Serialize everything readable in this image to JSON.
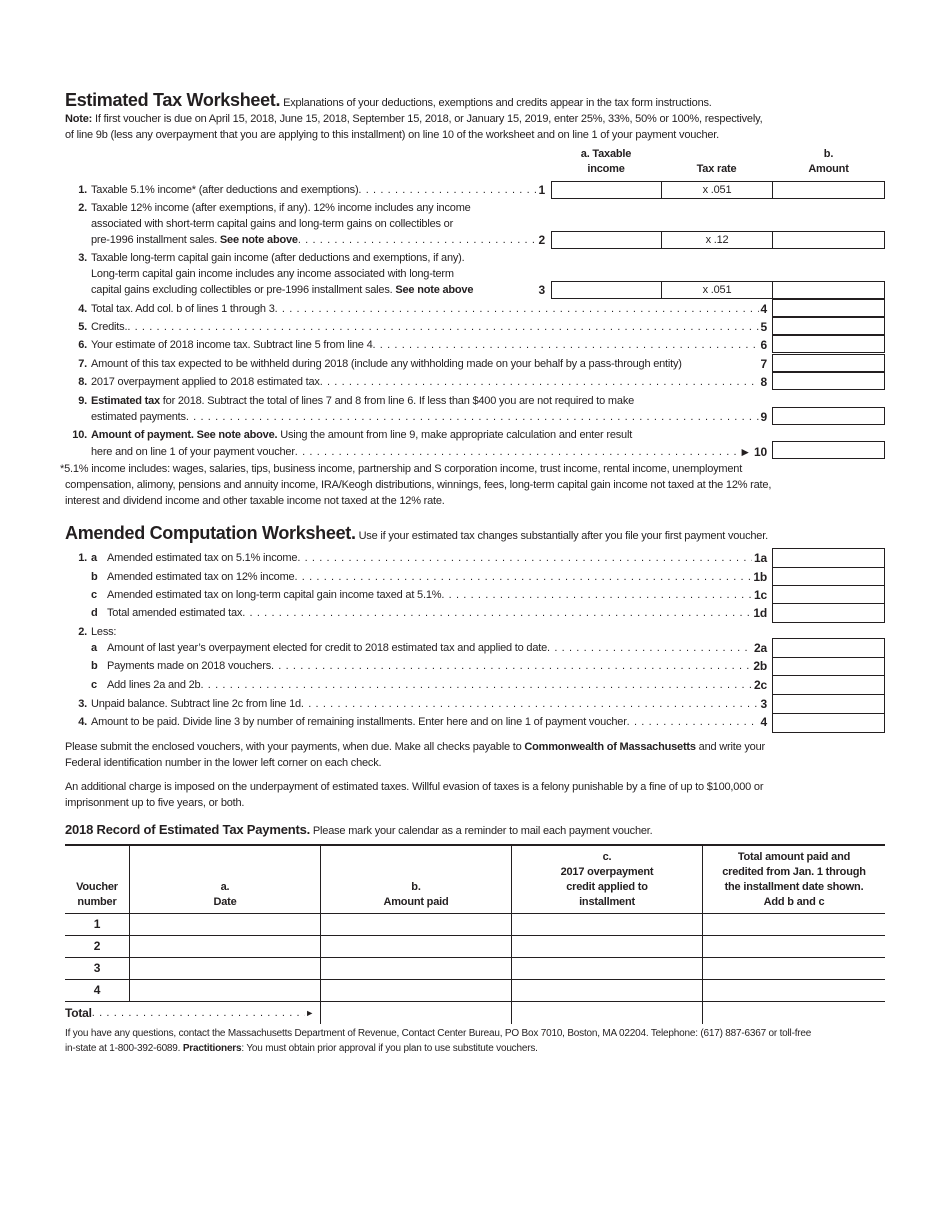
{
  "estimated": {
    "title": "Estimated Tax Worksheet.",
    "intro": "Explanations of your deductions, exemptions and credits appear in the tax form instructions.",
    "note_label": "Note:",
    "note_line1": "If first voucher is due on April 15, 2018, June 15, 2018, September 15, 2018, or January 15, 2019, enter 25%, 33%, 50% or 100%, respectively,",
    "note_line2": "of line 9b (less any overpayment that you are applying to this installment) on line 10 of the worksheet and on line 1 of your payment voucher.",
    "col_a": [
      "a. Taxable",
      "income"
    ],
    "col_rate": "Tax rate",
    "col_b": [
      "b.",
      "Amount"
    ],
    "lines": [
      {
        "num": "1.",
        "text": [
          "Taxable 5.1% income* (after deductions and exemptions)"
        ],
        "ref": "1",
        "rate": "x .051"
      },
      {
        "num": "2.",
        "text": [
          "Taxable 12% income (after exemptions, if any). 12% income includes any income",
          "associated with short-term capital gains and long-term gains on collectibles or",
          "pre-1996 installment sales."
        ],
        "bold": "See note above",
        "ref": "2",
        "rate": "x .12"
      },
      {
        "num": "3.",
        "text": [
          "Taxable long-term capital gain income (after deductions and exemptions, if any).",
          "Long-term capital gain income includes any income associated with long-term",
          "capital gains excluding collectibles or pre-1996 installment sales."
        ],
        "bold": "See note above",
        "ref": "3",
        "rate": "x .051"
      },
      {
        "num": "4.",
        "text": [
          "Total tax. Add col. b of lines 1 through 3"
        ],
        "ref": "4"
      },
      {
        "num": "5.",
        "text": [
          "Credits."
        ],
        "ref": "5"
      },
      {
        "num": "6.",
        "text": [
          "Your estimate of 2018 income tax. Subtract line 5 from line 4"
        ],
        "ref": "6"
      },
      {
        "num": "7.",
        "text": [
          "Amount of this tax expected to be withheld during 2018 (include any withholding made on your behalf by a pass-through entity)"
        ],
        "ref": "7"
      },
      {
        "num": "8.",
        "text": [
          "2017 overpayment applied to 2018 estimated tax"
        ],
        "ref": "8"
      },
      {
        "num": "9.",
        "bold": "Estimated tax",
        "text": [
          " for 2018. Subtract the total of lines 7 and 8 from line 6. If less than $400 you are not required to make",
          "estimated payments"
        ],
        "ref": "9"
      },
      {
        "num": "10.",
        "bold": "Amount of payment. See note above.",
        "text": [
          " Using the amount from line 9, make appropriate calculation and enter result",
          "here and on line 1 of your payment voucher"
        ],
        "ref": "► 10"
      }
    ],
    "footnote": [
      "*5.1% income includes: wages, salaries, tips, business income, partnership and S corporation income, trust income, rental income, unemployment",
      "compensation, alimony, pensions and annuity income, IRA/Keogh distributions, winnings, fees, long-term capital gain income not taxed at the 12% rate,",
      "interest and dividend income and other taxable income not taxed at the 12% rate."
    ]
  },
  "amended": {
    "title": "Amended Computation Worksheet.",
    "intro": "Use if your estimated tax changes substantially after you file your first payment voucher.",
    "lines": [
      {
        "num": "1.",
        "letter": "a",
        "text": "Amended estimated tax on 5.1% income",
        "ref": "1a"
      },
      {
        "letter": "b",
        "text": "Amended estimated tax on 12% income",
        "ref": "1b"
      },
      {
        "letter": "c",
        "text": "Amended estimated tax on long-term capital gain income taxed at 5.1%",
        "ref": "1c"
      },
      {
        "letter": "d",
        "text": "Total amended estimated tax",
        "ref": "1d"
      },
      {
        "num": "2.",
        "text": "Less:"
      },
      {
        "letter": "a",
        "text": "Amount of last year’s overpayment elected for credit to 2018 estimated tax and applied to date",
        "ref": "2a"
      },
      {
        "letter": "b",
        "text": "Payments made on 2018 vouchers",
        "ref": "2b"
      },
      {
        "letter": "c",
        "text": "Add lines 2a and 2b",
        "ref": "2c"
      },
      {
        "num": "3.",
        "text": "Unpaid balance. Subtract line 2c from line 1d",
        "ref": "3"
      },
      {
        "num": "4.",
        "text": "Amount to be paid. Divide line 3 by number of remaining installments. Enter here and on line 1 of payment voucher",
        "ref": "4"
      }
    ]
  },
  "para1": {
    "a": "Please submit the enclosed vouchers, with your payments, when due. Make all checks payable to ",
    "b": "Commonwealth of Massachusetts",
    "c": " and write your",
    "d": "Federal identification number in the lower left corner on each check."
  },
  "para2": [
    "An additional charge is imposed on the underpayment of estimated taxes. Willful evasion of taxes is a felony punishable by a fine of up to $100,000 or",
    "imprisonment up to five years, or both."
  ],
  "record": {
    "title": "2018 Record of Estimated Tax Payments.",
    "intro": "Please mark your calendar as a reminder to mail each payment voucher.",
    "headers": [
      [
        "Voucher",
        "number"
      ],
      [
        "a.",
        "Date"
      ],
      [
        "b.",
        "Amount paid"
      ],
      [
        "c.",
        "2017 overpayment",
        "credit applied to",
        "installment"
      ],
      [
        "Total amount paid and",
        "credited from Jan. 1 through",
        "the installment date shown.",
        "Add b and c"
      ]
    ],
    "rows": [
      "1",
      "2",
      "3",
      "4"
    ],
    "total": "Total",
    "total_arrow": "►"
  },
  "footer": {
    "line1": "If you have any questions, contact the Massachusetts Department of Revenue, Contact Center Bureau, PO Box 7010, Boston, MA 02204. Telephone: (617) 887-6367 or toll-free",
    "line2a": "in-state at 1-800-392-6089. ",
    "line2b": "Practitioners",
    "line2c": ": You must obtain prior approval if you plan to use substitute vouchers."
  }
}
